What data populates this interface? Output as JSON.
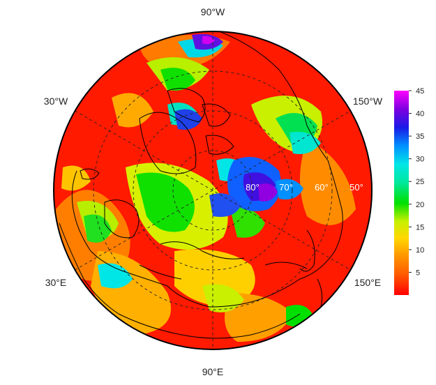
{
  "map": {
    "projection": "north-polar-stereographic",
    "longitude_labels": {
      "top": "90°W",
      "upper_left": "30°W",
      "upper_right": "150°W",
      "lower_left": "30°E",
      "lower_right": "150°E",
      "bottom": "90°E"
    },
    "latitude_labels": [
      "80°",
      "70°",
      "60°",
      "50°"
    ]
  },
  "colorbar": {
    "ticks": [
      "45",
      "40",
      "35",
      "30",
      "25",
      "20",
      "15",
      "10",
      "5"
    ],
    "min": 0,
    "max": 45,
    "colors": [
      "#ff0000",
      "#ff5a00",
      "#ff9c00",
      "#ffd800",
      "#c8f000",
      "#00e000",
      "#00e89c",
      "#00e6e6",
      "#0090ff",
      "#1a1ae6",
      "#7d00e0",
      "#ff00ff"
    ]
  }
}
